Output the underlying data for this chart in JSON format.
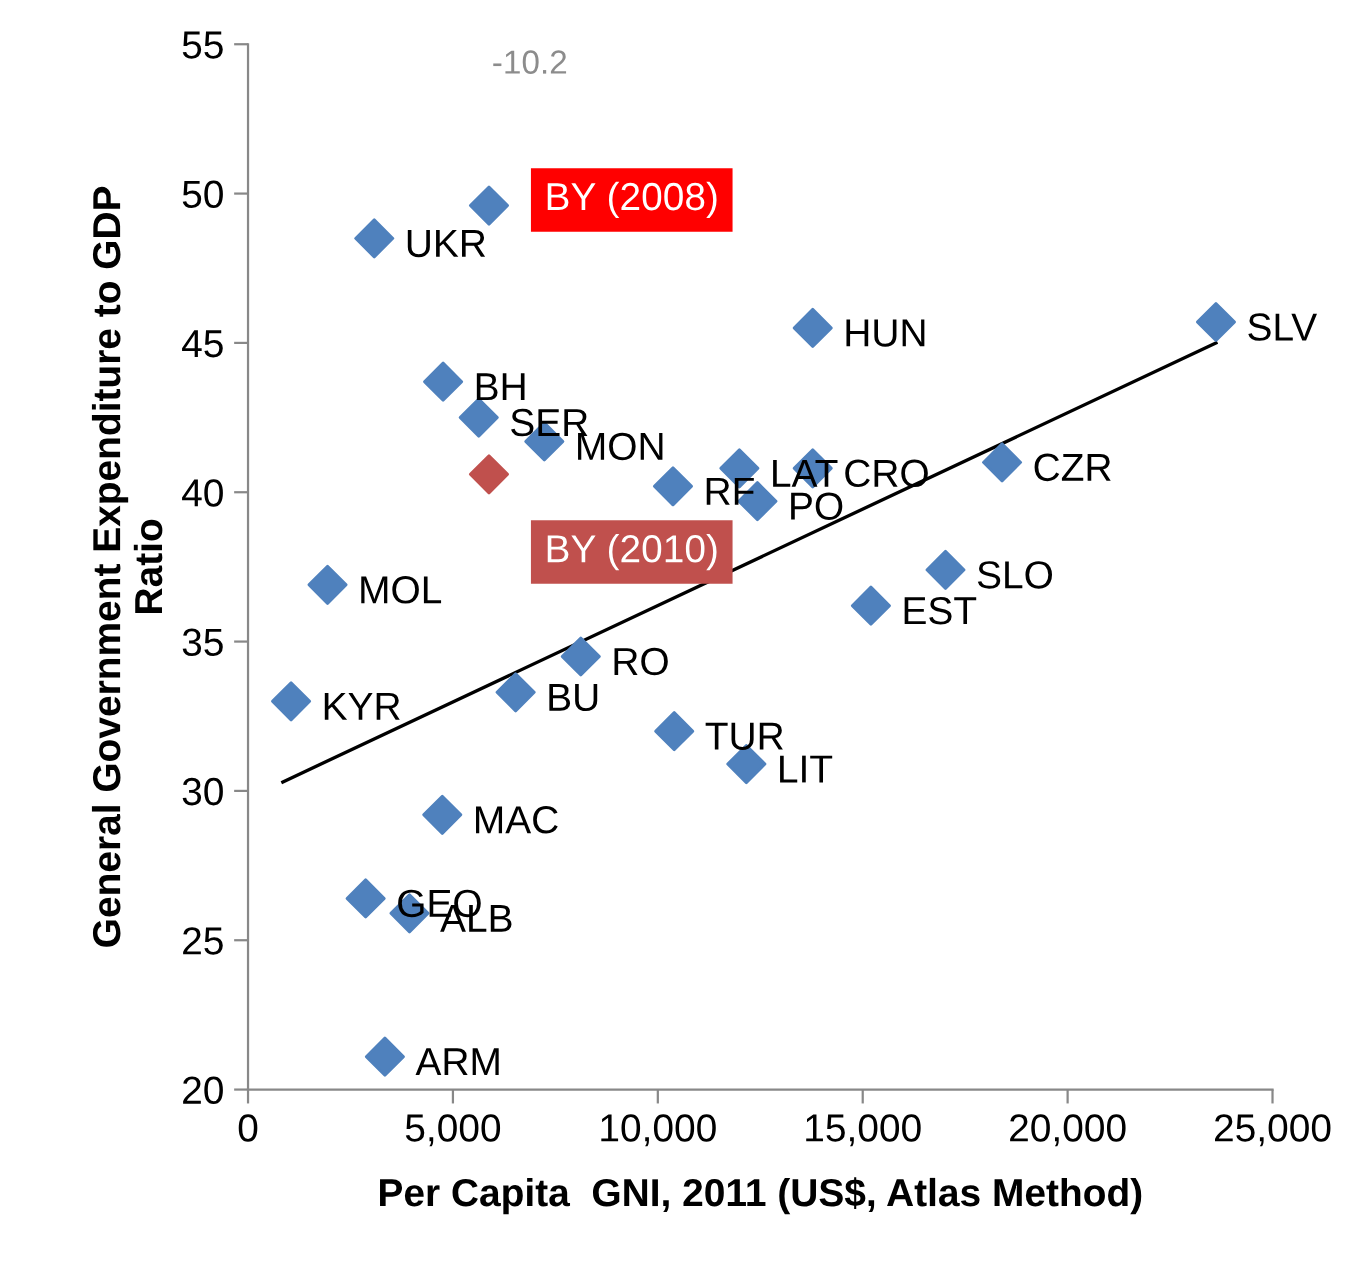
{
  "chart_data": {
    "type": "scatter",
    "xlabel": "Per Capita  GNI, 2011 (US$, Atlas Method)",
    "ylabel": "General Government Expenditure to GDP\nRatio",
    "xlim": [
      0,
      25000
    ],
    "xticks": [
      {
        "value": 0,
        "label": "0"
      },
      {
        "value": 5000,
        "label": "5,000"
      },
      {
        "value": 10000,
        "label": "10,000"
      },
      {
        "value": 15000,
        "label": "15,000"
      },
      {
        "value": 20000,
        "label": "20,000"
      },
      {
        "value": 25000,
        "label": "25,000"
      }
    ],
    "ylim": [
      20,
      55
    ],
    "yticks": [
      20,
      25,
      30,
      35,
      40,
      45,
      50,
      55
    ],
    "grid": false,
    "legend": false,
    "marker": "diamond",
    "series": [
      {
        "color": "#4f81bd",
        "x": [
          3080,
          5880,
          4760,
          5630,
          7230,
          10370,
          11990,
          12430,
          13780,
          1940,
          8120,
          1050,
          6530,
          10400,
          12160,
          4740,
          2870,
          3940,
          3340,
          13780,
          23620,
          18400,
          17020,
          15200
        ],
        "values": [
          48.5,
          49.6,
          43.7,
          42.5,
          41.7,
          40.2,
          40.8,
          39.7,
          40.8,
          36.9,
          34.5,
          33.0,
          33.3,
          32.0,
          30.9,
          29.2,
          26.4,
          25.9,
          21.1,
          45.5,
          45.7,
          41.0,
          37.4,
          36.2
        ],
        "value_labels": [
          "UKR",
          null,
          "BH",
          "SER",
          "MON",
          "RF",
          "LAT",
          "PO",
          "CRO",
          "MOL",
          "RO",
          "KYR",
          "BU",
          "TUR",
          "LIT",
          "MAC",
          "GEO",
          "ALB",
          "ARM",
          "HUN",
          "SLV",
          "CZR",
          "SLO",
          "EST"
        ]
      },
      {
        "color": "#c0504d",
        "x": [
          5880
        ],
        "values": [
          40.6
        ]
      },
      {
        "type": "line",
        "color": "#000000",
        "marker": "none",
        "x": [
          850,
          23620
        ],
        "values": [
          30.3,
          45.0
        ]
      }
    ],
    "annotations": [
      "-10.2",
      {
        "text": "BY (2008)",
        "x": 5880,
        "y": 49.6
      },
      {
        "text": "BY (2010)",
        "x": 5880,
        "y": 40.6
      }
    ]
  }
}
